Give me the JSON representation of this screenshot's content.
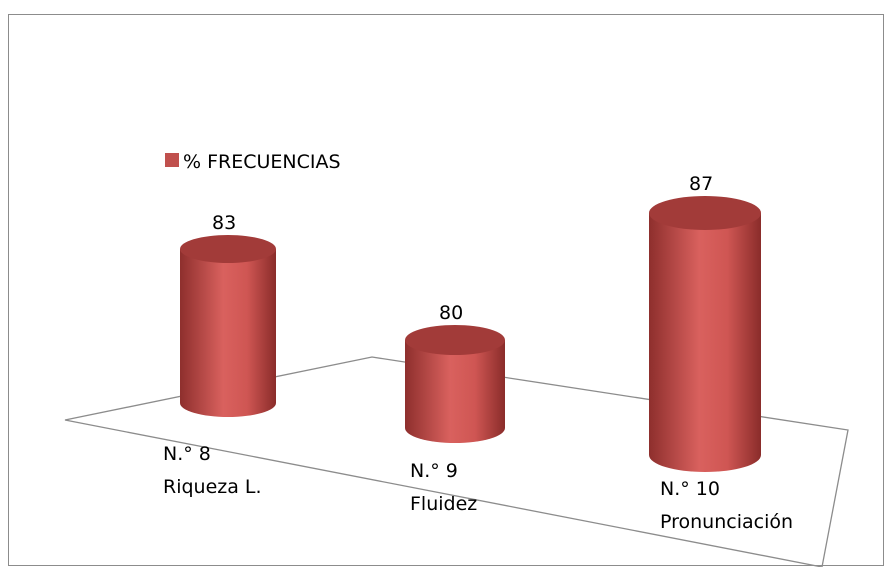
{
  "chart_data": {
    "type": "bar3d",
    "legend": "% FRECUENCIAS",
    "color": "#c0504d",
    "categories": [
      [
        "N.° 8",
        "Riqueza L."
      ],
      [
        "N.° 9",
        "Fluidez"
      ],
      [
        "N.° 10",
        "Pronunciación"
      ]
    ],
    "values": [
      83,
      80,
      87
    ],
    "ylim": [
      76,
      88
    ]
  }
}
